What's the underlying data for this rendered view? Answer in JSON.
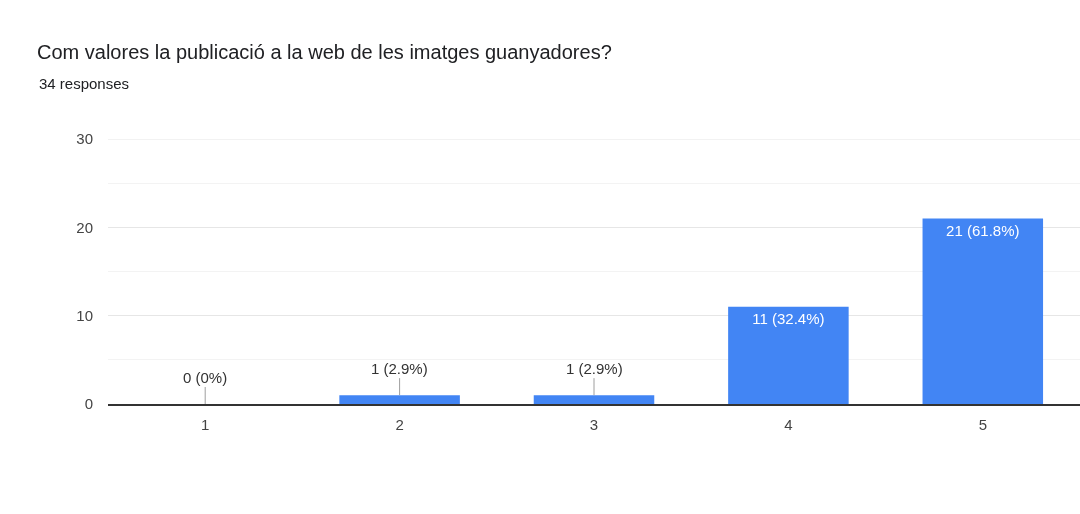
{
  "chart_data": {
    "type": "bar",
    "title": "Com valores la publicació a la web de les imatges guanyadores?",
    "subtitle": "34 responses",
    "categories": [
      "1",
      "2",
      "3",
      "4",
      "5"
    ],
    "values": [
      0,
      1,
      1,
      11,
      21
    ],
    "color": "#4285f4",
    "value_labels": [
      "0 (0%)",
      "1 (2.9%)",
      "1 (2.9%)",
      "11 (32.4%)",
      "21 (61.8%)"
    ],
    "ylim": [
      0,
      30
    ],
    "yticks": [
      0,
      {
        "value": 5,
        "label": null
      },
      10,
      {
        "value": 15,
        "label": null
      },
      20,
      {
        "value": 25,
        "label": null
      },
      30
    ],
    "grid": "y"
  }
}
